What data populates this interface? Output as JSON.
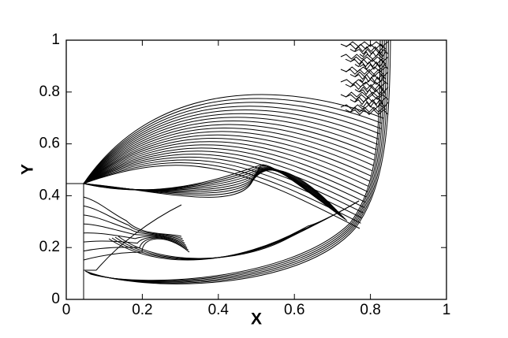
{
  "chart_data": {
    "type": "contour",
    "xlabel": "X",
    "ylabel": "Y",
    "xlim": [
      0,
      1
    ],
    "ylim": [
      0,
      1
    ],
    "xticks": [
      0,
      0.2,
      0.4,
      0.6,
      0.8,
      1
    ],
    "yticks": [
      0,
      0.2,
      0.4,
      0.6,
      0.8,
      1
    ]
  }
}
